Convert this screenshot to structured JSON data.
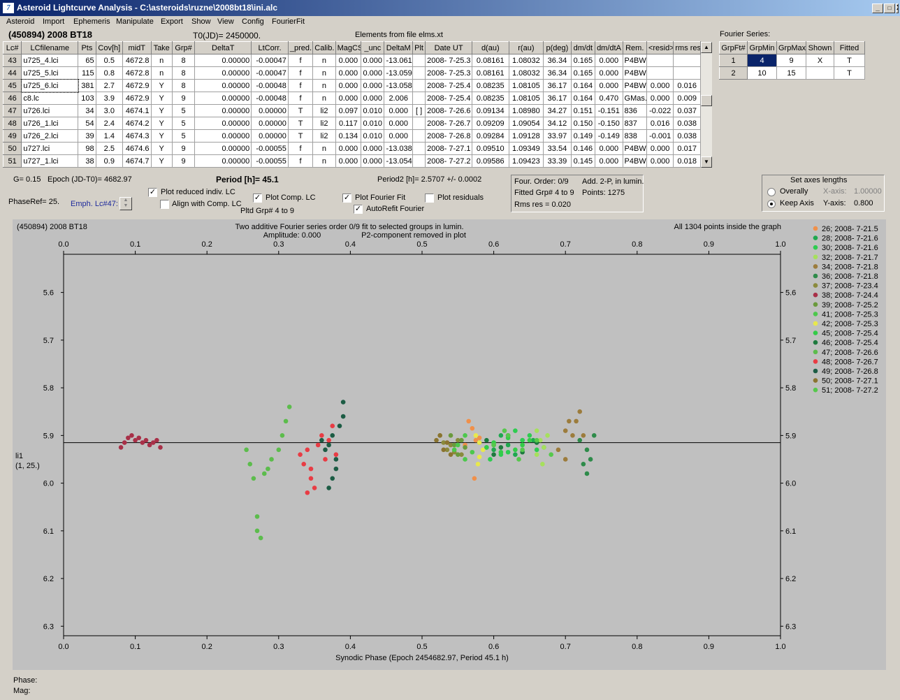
{
  "window": {
    "title": "Asteroid Lightcurve Analysis - C:\\asteroids\\ruzne\\2008bt18\\ini.alc",
    "minimize": "_",
    "maximize": "□",
    "close": "X"
  },
  "menu": [
    "Asteroid",
    "Import",
    "Ephemeris",
    "Manipulate",
    "Export",
    "Show",
    "View",
    "Config",
    "FourierFit"
  ],
  "header": {
    "object": "(450894) 2008 BT18",
    "t0": "T0(JD)= 2450000.",
    "elements": "Elements from file elms.xt"
  },
  "lc_table": {
    "columns": [
      "Lc#",
      "LCfilename",
      "Pts",
      "Cov[h]",
      "midT",
      "Take",
      "Grp#",
      "DeltaT",
      "LtCorr.",
      "_pred.",
      "Calib.",
      "MagCS",
      "_unc",
      "DeltaM",
      "Plt",
      "Date UT",
      "d(au)",
      "r(au)",
      "p(deg)",
      "dm/dt",
      "dm/dtA",
      "Rem.",
      "<resid>",
      "rms res"
    ],
    "rows": [
      [
        "43",
        "u725_4.lci",
        "65",
        "0.5",
        "4672.8",
        "n",
        "8",
        "0.00000",
        "-0.00047",
        "f",
        "n",
        "0.000",
        "0.000",
        "-13.061",
        "",
        "2008- 7-25.3",
        "0.08161",
        "1.08032",
        "36.34",
        "0.165",
        "0.000",
        "P4BW",
        "",
        ""
      ],
      [
        "44",
        "u725_5.lci",
        "115",
        "0.8",
        "4672.8",
        "n",
        "8",
        "0.00000",
        "-0.00047",
        "f",
        "n",
        "0.000",
        "0.000",
        "-13.059",
        "",
        "2008- 7-25.3",
        "0.08161",
        "1.08032",
        "36.34",
        "0.165",
        "0.000",
        "P4BW",
        "",
        ""
      ],
      [
        "45",
        "u725_6.lci",
        "381",
        "2.7",
        "4672.9",
        "Y",
        "8",
        "0.00000",
        "-0.00048",
        "f",
        "n",
        "0.000",
        "0.000",
        "-13.058",
        "",
        "2008- 7-25.4",
        "0.08235",
        "1.08105",
        "36.17",
        "0.164",
        "0.000",
        "P4BW",
        "0.000",
        "0.016"
      ],
      [
        "46",
        "c8.lc",
        "103",
        "3.9",
        "4672.9",
        "Y",
        "9",
        "0.00000",
        "-0.00048",
        "f",
        "n",
        "0.000",
        "0.000",
        "2.006",
        "",
        "2008- 7-25.4",
        "0.08235",
        "1.08105",
        "36.17",
        "0.164",
        "0.470",
        "GMas..",
        "0.000",
        "0.009"
      ],
      [
        "47",
        "u726.lci",
        "34",
        "3.0",
        "4674.1",
        "Y",
        "5",
        "0.00000",
        "0.00000",
        "T",
        "li2",
        "0.097",
        "0.010",
        "0.000",
        "[ ]",
        "2008- 7-26.6",
        "0.09134",
        "1.08980",
        "34.27",
        "0.151",
        "-0.151",
        "836",
        "-0.022",
        "0.037"
      ],
      [
        "48",
        "u726_1.lci",
        "54",
        "2.4",
        "4674.2",
        "Y",
        "5",
        "0.00000",
        "0.00000",
        "T",
        "li2",
        "0.117",
        "0.010",
        "0.000",
        "",
        "2008- 7-26.7",
        "0.09209",
        "1.09054",
        "34.12",
        "0.150",
        "-0.150",
        "837",
        "0.016",
        "0.038"
      ],
      [
        "49",
        "u726_2.lci",
        "39",
        "1.4",
        "4674.3",
        "Y",
        "5",
        "0.00000",
        "0.00000",
        "T",
        "li2",
        "0.134",
        "0.010",
        "0.000",
        "",
        "2008- 7-26.8",
        "0.09284",
        "1.09128",
        "33.97",
        "0.149",
        "-0.149",
        "838",
        "-0.001",
        "0.038"
      ],
      [
        "50",
        "u727.lci",
        "98",
        "2.5",
        "4674.6",
        "Y",
        "9",
        "0.00000",
        "-0.00055",
        "f",
        "n",
        "0.000",
        "0.000",
        "-13.038",
        "",
        "2008- 7-27.1",
        "0.09510",
        "1.09349",
        "33.54",
        "0.146",
        "0.000",
        "P4BW",
        "0.000",
        "0.017"
      ],
      [
        "51",
        "u727_1.lci",
        "38",
        "0.9",
        "4674.7",
        "Y",
        "9",
        "0.00000",
        "-0.00055",
        "f",
        "n",
        "0.000",
        "0.000",
        "-13.054",
        "",
        "2008- 7-27.2",
        "0.09586",
        "1.09423",
        "33.39",
        "0.145",
        "0.000",
        "P4BW",
        "0.000",
        "0.018"
      ]
    ]
  },
  "fourier_series": {
    "label": "Fourier Series:",
    "columns": [
      "GrpFt#",
      "GrpMin",
      "GrpMax",
      "Shown",
      "Fitted"
    ],
    "rows": [
      [
        "1",
        "4",
        "9",
        "X",
        "T"
      ],
      [
        "2",
        "10",
        "15",
        "",
        "T"
      ]
    ]
  },
  "controls": {
    "g": "G= 0.15",
    "epoch": "Epoch (JD-T0)= 4682.97",
    "period": "Period [h]= 45.1",
    "period2": "Period2 [h]= 2.5707 +/- 0.0002",
    "phaseref": "PhaseRef= 25.",
    "emph": "Emph. Lc#47:",
    "plot_reduced": "Plot reduced indiv. LC",
    "align_comp": "Align with Comp. LC",
    "plot_comp": "Plot Comp. LC",
    "pltd_grp": "Pltd Grp#  4   to   9",
    "plot_fourier": "Plot Fourier Fit",
    "autorefit": "AutoRefit Fourier",
    "plot_resid": "Plot residuals"
  },
  "four_info": {
    "order": "Four. Order:  0/9",
    "add": "Add. 2-P, in lumin.",
    "fitted": "Fitted Grp# 4 to 9",
    "points": "Points: 1275",
    "rms": "Rms res      = 0.020"
  },
  "axes_box": {
    "title": "Set axes lengths",
    "overally": "Overally",
    "keep": "Keep Axis",
    "xlabel": "X-axis:",
    "xval": "1.00000",
    "ylabel": "Y-axis:",
    "yval": "0.800"
  },
  "plot_header": {
    "object": "(450894) 2008 BT18",
    "line1": "Two additive Fourier series order 0/9 fit to selected groups in lumin.",
    "line2": "Amplitude: 0.000",
    "line3": "P2-component removed in plot",
    "inside": "All 1304 points inside the graph",
    "ylab1": "li1",
    "ylab2": "(1, 25.)"
  },
  "status": {
    "phase": "Phase:",
    "mag": "Mag:"
  },
  "chart_data": {
    "type": "scatter",
    "xlabel": "Synodic Phase (Epoch 2454682.97, Period 45.1 h)",
    "xlim": [
      0,
      1
    ],
    "ylim": [
      6.32,
      5.52
    ],
    "x_ticks": [
      "0.0",
      "0.1",
      "0.2",
      "0.3",
      "0.4",
      "0.5",
      "0.6",
      "0.7",
      "0.8",
      "0.9",
      "1.0"
    ],
    "y_ticks": [
      "5.6",
      "5.7",
      "5.8",
      "5.9",
      "6.0",
      "6.1",
      "6.2",
      "6.3"
    ],
    "fourier_line": 5.915,
    "series": [
      {
        "name": "26; 2008- 7-21.5",
        "color": "#f0904a",
        "x": [
          0.56,
          0.575,
          0.58,
          0.57,
          0.565,
          0.573
        ],
        "y": [
          5.92,
          5.91,
          5.905,
          5.885,
          5.87,
          5.99
        ]
      },
      {
        "name": "28; 2008- 7-21.6",
        "color": "#1fa84f",
        "x": [
          0.58,
          0.6,
          0.62,
          0.64,
          0.61,
          0.63,
          0.59,
          0.655
        ],
        "y": [
          5.915,
          5.93,
          5.92,
          5.91,
          5.9,
          5.94,
          5.925,
          5.91
        ]
      },
      {
        "name": "30; 2008- 7-21.6",
        "color": "#2ecc50",
        "x": [
          0.6,
          0.62,
          0.64,
          0.66,
          0.61,
          0.65,
          0.67,
          0.63,
          0.595
        ],
        "y": [
          5.92,
          5.935,
          5.91,
          5.93,
          5.94,
          5.9,
          5.925,
          5.89,
          5.95
        ]
      },
      {
        "name": "32; 2008- 7-21.7",
        "color": "#a6e05c",
        "x": [
          0.66,
          0.665,
          0.67,
          0.675,
          0.66,
          0.668
        ],
        "y": [
          5.89,
          5.91,
          5.925,
          5.9,
          5.94,
          5.96
        ]
      },
      {
        "name": "34; 2008- 7-21.8",
        "color": "#9c7c3c",
        "x": [
          0.7,
          0.705,
          0.71,
          0.715,
          0.72,
          0.725,
          0.69,
          0.7
        ],
        "y": [
          5.89,
          5.87,
          5.9,
          5.87,
          5.85,
          5.9,
          5.93,
          5.95
        ]
      },
      {
        "name": "36; 2008- 7-21.8",
        "color": "#2e8b4a",
        "x": [
          0.72,
          0.73,
          0.74,
          0.735,
          0.725,
          0.73
        ],
        "y": [
          5.91,
          5.93,
          5.9,
          5.95,
          5.96,
          5.98
        ]
      },
      {
        "name": "37; 2008- 7-23.4",
        "color": "#8a8a3c",
        "x": [
          0.525,
          0.53,
          0.535,
          0.54,
          0.545,
          0.55,
          0.555
        ],
        "y": [
          5.9,
          5.915,
          5.93,
          5.92,
          5.935,
          5.91,
          5.94
        ]
      },
      {
        "name": "38; 2008- 7-24.4",
        "color": "#a83048",
        "x": [
          0.08,
          0.085,
          0.09,
          0.095,
          0.1,
          0.105,
          0.11,
          0.115,
          0.12,
          0.125,
          0.13,
          0.135
        ],
        "y": [
          5.925,
          5.915,
          5.905,
          5.9,
          5.91,
          5.905,
          5.915,
          5.91,
          5.92,
          5.915,
          5.91,
          5.925
        ]
      },
      {
        "name": "39; 2008- 7-25.2",
        "color": "#6a9a3c",
        "x": [
          0.54,
          0.545,
          0.55,
          0.555,
          0.56
        ],
        "y": [
          5.9,
          5.92,
          5.94,
          5.91,
          5.925
        ]
      },
      {
        "name": "41; 2008- 7-25.3",
        "color": "#4cc84c",
        "x": [
          0.55,
          0.56,
          0.57,
          0.56,
          0.545
        ],
        "y": [
          5.92,
          5.9,
          5.935,
          5.95,
          5.93
        ]
      },
      {
        "name": "42; 2008- 7-25.3",
        "color": "#e8e84c",
        "x": [
          0.575,
          0.58,
          0.585,
          0.58,
          0.578
        ],
        "y": [
          5.9,
          5.915,
          5.93,
          5.945,
          5.96
        ]
      },
      {
        "name": "45; 2008- 7-25.4",
        "color": "#34cc48",
        "x": [
          0.59,
          0.6,
          0.61,
          0.62,
          0.63,
          0.64,
          0.65
        ],
        "y": [
          5.925,
          5.915,
          5.935,
          5.905,
          5.93,
          5.92,
          5.91
        ]
      },
      {
        "name": "46; 2008- 7-25.4",
        "color": "#1e7a3e",
        "x": [
          0.59,
          0.61,
          0.62,
          0.64,
          0.66,
          0.6
        ],
        "y": [
          5.91,
          5.925,
          5.9,
          5.935,
          5.915,
          5.94
        ]
      },
      {
        "name": "47; 2008- 7-26.6",
        "color": "#5cbc4c",
        "x": [
          0.255,
          0.26,
          0.265,
          0.27,
          0.27,
          0.275,
          0.28,
          0.285,
          0.29,
          0.3,
          0.305,
          0.31,
          0.315
        ],
        "y": [
          5.93,
          5.96,
          5.99,
          6.07,
          6.1,
          6.115,
          5.98,
          5.97,
          5.95,
          5.93,
          5.9,
          5.87,
          5.84
        ]
      },
      {
        "name": "48; 2008- 7-26.7",
        "color": "#e83c44",
        "x": [
          0.33,
          0.335,
          0.34,
          0.345,
          0.35,
          0.355,
          0.36,
          0.365,
          0.37,
          0.34,
          0.345,
          0.38,
          0.375
        ],
        "y": [
          5.94,
          5.96,
          5.93,
          5.99,
          6.01,
          5.92,
          5.9,
          5.95,
          5.91,
          6.02,
          5.97,
          5.94,
          5.88
        ]
      },
      {
        "name": "49; 2008- 7-26.8",
        "color": "#1c5c44",
        "x": [
          0.36,
          0.365,
          0.37,
          0.375,
          0.38,
          0.385,
          0.39,
          0.37,
          0.38,
          0.375,
          0.39
        ],
        "y": [
          5.91,
          5.93,
          5.92,
          5.9,
          5.95,
          5.88,
          5.86,
          6.01,
          5.97,
          5.99,
          5.83
        ]
      },
      {
        "name": "50; 2008- 7-27.1",
        "color": "#8a7430",
        "x": [
          0.52,
          0.525,
          0.53,
          0.535,
          0.54
        ],
        "y": [
          5.91,
          5.9,
          5.93,
          5.915,
          5.94
        ]
      },
      {
        "name": "51; 2008- 7-27.2",
        "color": "#56c84c",
        "x": [
          0.6,
          0.62,
          0.64,
          0.66,
          0.68,
          0.615,
          0.635
        ],
        "y": [
          5.92,
          5.9,
          5.93,
          5.91,
          5.94,
          5.89,
          5.95
        ]
      }
    ]
  }
}
